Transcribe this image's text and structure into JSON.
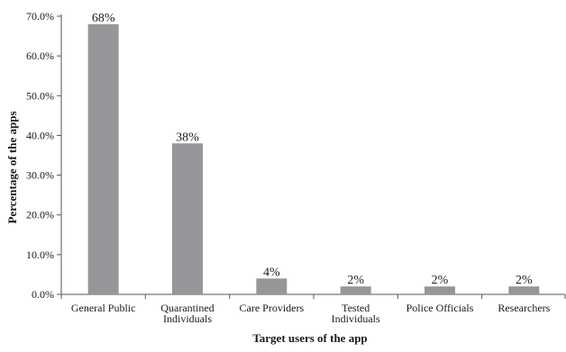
{
  "chart_data": {
    "type": "bar",
    "title": "",
    "xlabel": "Target users of the app",
    "ylabel": "Percentage of the apps",
    "categories": [
      [
        "General Public"
      ],
      [
        "Quarantined",
        "Individuals"
      ],
      [
        "Care Providers"
      ],
      [
        "Tested",
        "Individuals"
      ],
      [
        "Police Officials"
      ],
      [
        "Researchers"
      ]
    ],
    "values": [
      68,
      38,
      4,
      2,
      2,
      2
    ],
    "data_labels": [
      "68%",
      "38%",
      "4%",
      "2%",
      "2%",
      "2%"
    ],
    "ylim": [
      0,
      70
    ],
    "yticks": [
      0,
      10,
      20,
      30,
      40,
      50,
      60,
      70
    ],
    "ytick_labels": [
      "0.0%",
      "10.0%",
      "20.0%",
      "30.0%",
      "40.0%",
      "50.0%",
      "60.0%",
      "70.0%"
    ],
    "grid": false,
    "legend": "none",
    "bar_color": "#96969a",
    "axis_color": "#555555"
  }
}
